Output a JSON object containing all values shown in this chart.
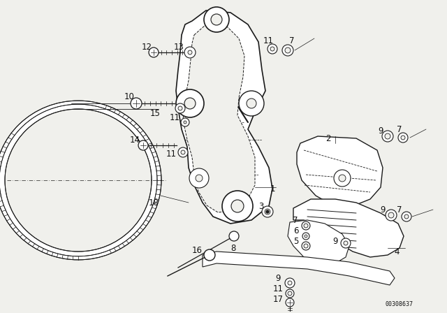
{
  "bg_color": "#f0f0ec",
  "line_color": "#1a1a1a",
  "text_color": "#111111",
  "part_number_text": "00308637",
  "figsize": [
    6.4,
    4.48
  ],
  "dpi": 100
}
